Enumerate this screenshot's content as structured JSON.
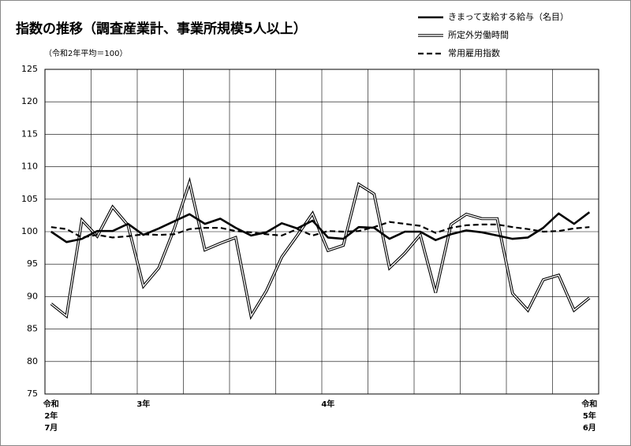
{
  "chart_data": {
    "type": "line",
    "title": "指数の推移（調査産業計、事業所規模5人以上）",
    "subtitle": "（令和2年平均＝100）",
    "categories": [
      [
        "令和",
        "2年",
        "7月"
      ],
      null,
      null,
      null,
      null,
      null,
      [
        "3年"
      ],
      null,
      null,
      null,
      null,
      null,
      null,
      null,
      null,
      null,
      null,
      null,
      [
        "4年"
      ],
      null,
      null,
      null,
      null,
      null,
      null,
      null,
      null,
      null,
      null,
      null,
      null,
      null,
      null,
      null,
      null,
      [
        "令和",
        "5年",
        "6月"
      ]
    ],
    "series": [
      {
        "name": "きまって支給する給与（名目）",
        "color": "#000000",
        "style": "solid",
        "values": [
          100.0,
          98.4,
          98.9,
          100.1,
          100.1,
          101.2,
          99.5,
          100.5,
          101.6,
          102.7,
          101.2,
          102.0,
          100.6,
          99.4,
          99.9,
          101.3,
          100.5,
          101.7,
          99.1,
          98.9,
          100.7,
          100.6,
          98.9,
          100.0,
          100.0,
          98.7,
          99.6,
          100.2,
          99.9,
          99.4,
          98.9,
          99.1,
          100.6,
          102.8,
          101.2,
          103.0
        ]
      },
      {
        "name": "所定外労働時間",
        "color": "#000000",
        "style": "double",
        "values": [
          88.9,
          87.0,
          101.8,
          99.3,
          103.8,
          101.0,
          91.6,
          94.4,
          100.4,
          107.6,
          97.2,
          98.2,
          99.1,
          87.0,
          90.9,
          96.1,
          99.4,
          102.8,
          97.1,
          97.9,
          107.3,
          105.8,
          94.4,
          96.7,
          99.5,
          90.6,
          101.1,
          102.7,
          102.0,
          102.0,
          90.5,
          87.9,
          92.6,
          93.3,
          87.9,
          89.8
        ]
      },
      {
        "name": "常用雇用指数",
        "color": "#000000",
        "style": "dashed",
        "values": [
          100.7,
          100.4,
          99.1,
          99.5,
          99.1,
          99.3,
          99.6,
          99.5,
          99.6,
          100.4,
          100.6,
          100.6,
          100.1,
          99.9,
          99.6,
          99.4,
          100.4,
          99.4,
          100.1,
          100.0,
          100.1,
          100.7,
          101.5,
          101.2,
          100.9,
          99.8,
          100.6,
          101.0,
          101.1,
          101.1,
          100.7,
          100.4,
          100.0,
          100.1,
          100.5,
          100.7
        ]
      }
    ],
    "ylim": [
      75,
      125
    ],
    "yticks": [
      75,
      80,
      85,
      90,
      95,
      100,
      105,
      110,
      115,
      120,
      125
    ],
    "grid": true
  }
}
